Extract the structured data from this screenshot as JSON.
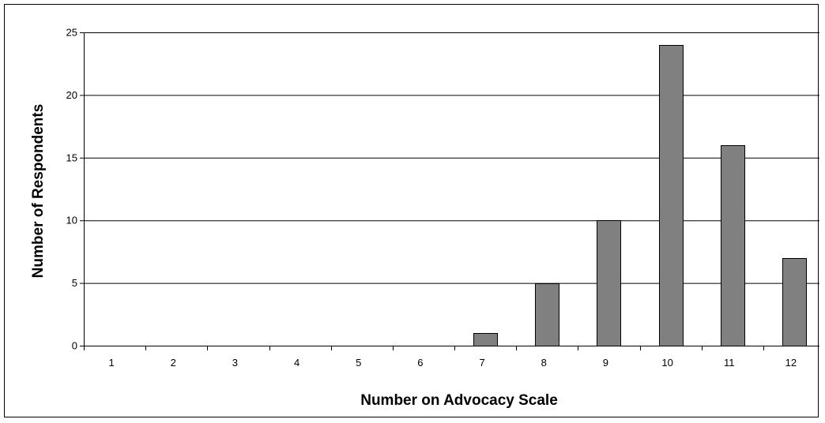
{
  "chart_data": {
    "type": "bar",
    "title": "",
    "xlabel": "Number on Advocacy Scale",
    "ylabel": "Number of Respondents",
    "categories": [
      "1",
      "2",
      "3",
      "4",
      "5",
      "6",
      "7",
      "8",
      "9",
      "10",
      "11",
      "12"
    ],
    "values": [
      0,
      0,
      0,
      0,
      0,
      0,
      1,
      5,
      10,
      24,
      16,
      7
    ],
    "ylim": [
      0,
      25
    ],
    "yticks": [
      0,
      5,
      10,
      15,
      20,
      25
    ],
    "grid": true,
    "legend": "none",
    "colors": {
      "bar_fill": "#808080",
      "bar_stroke": "#000000",
      "gridline": "#000000",
      "background": "#ffffff"
    }
  }
}
